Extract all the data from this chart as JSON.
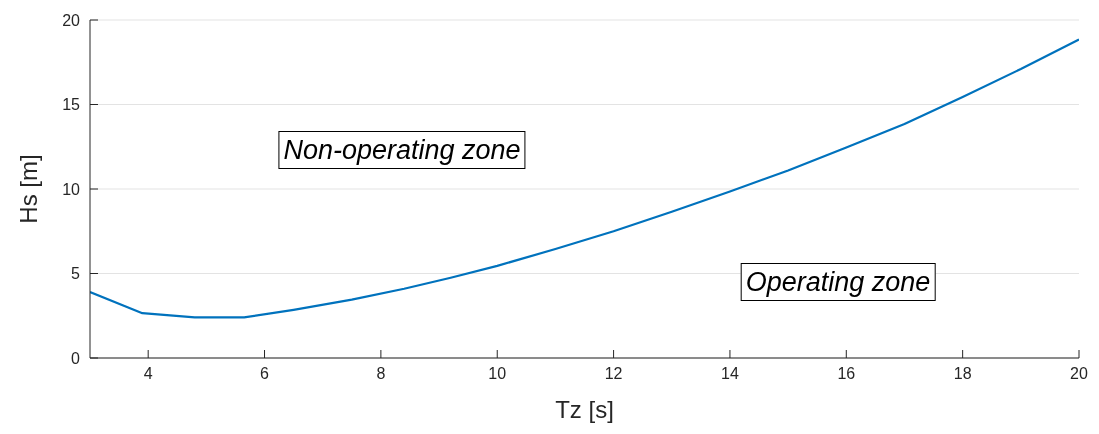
{
  "chart_data": {
    "type": "line",
    "xlabel": "Tz [s]",
    "ylabel": "Hs [m]",
    "x": [
      3,
      3.9,
      4.8,
      5.65,
      6.5,
      7.5,
      8.4,
      9.2,
      10,
      11,
      12,
      13,
      14,
      15,
      16,
      17,
      18,
      19,
      20
    ],
    "series": [
      {
        "color": "#0072bd",
        "values": [
          3.9,
          2.65,
          2.4,
          2.4,
          2.85,
          3.45,
          4.1,
          4.75,
          5.45,
          6.45,
          7.5,
          8.65,
          9.85,
          11.1,
          12.45,
          13.85,
          15.45,
          17.1,
          18.85
        ]
      }
    ],
    "xlim": [
      3,
      20
    ],
    "xticks": [
      4,
      6,
      8,
      10,
      12,
      14,
      16,
      18,
      20
    ],
    "ylim": [
      0,
      20
    ],
    "yticks": [
      0,
      5,
      10,
      15,
      20
    ],
    "grid": "y",
    "marker": "none",
    "line_style": "solid",
    "annotations": [
      "Non-operating zone",
      "Operating zone"
    ]
  }
}
